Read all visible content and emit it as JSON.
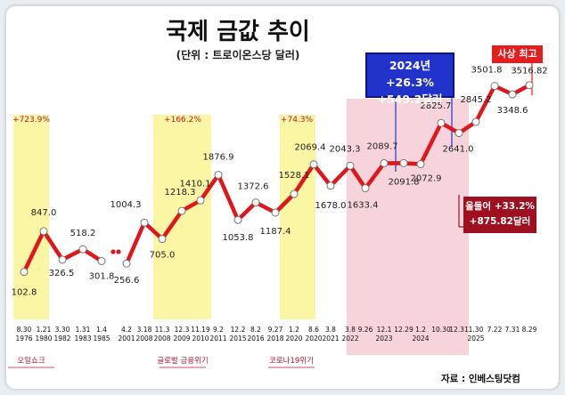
{
  "title": "국제 금값 추이",
  "subtitle": "(단위 : 트로이온스당 달러)",
  "source": "자료 : 인베스팅닷컴",
  "callouts": {
    "blue_line1": "2024년 +26.3%",
    "blue_line2": "+549.2달러",
    "record": "사상 최고",
    "ytd_line1": "올들어 +33.2%",
    "ytd_line2": "+875.82달러"
  },
  "colors": {
    "line": "#e0161a",
    "marker_fill": "#ffffff",
    "crisis_band": "#fbf6a4",
    "highlight_band": "#f7d4dc",
    "blue_box": "#2233cc",
    "record_box": "#e51d1d",
    "ytd_box": "#9e1020",
    "crisis_label": "#c0182a"
  },
  "chart_data": {
    "type": "line",
    "title": "국제 금값 추이",
    "ylabel": "",
    "unit": "(단위 : 트로이온스당 달러)",
    "y_axis_shown": false,
    "grid": false,
    "points": [
      {
        "date": [
          "8.30",
          "1976"
        ],
        "value": "102.8"
      },
      {
        "date": [
          "1.21",
          "1980"
        ],
        "value": "847.0"
      },
      {
        "date": [
          "3.30",
          "1982"
        ],
        "value": "326.5"
      },
      {
        "date": [
          "1.31",
          "1983"
        ],
        "value": "518.2"
      },
      {
        "date": [
          "1.4",
          "1985"
        ],
        "value": "301.8"
      },
      {
        "date": [
          "4.2",
          "2001"
        ],
        "value": "256.6"
      },
      {
        "date": [
          "3.18",
          "2008"
        ],
        "value": "1004.3"
      },
      {
        "date": [
          "11.3",
          "2008"
        ],
        "value": "705.0"
      },
      {
        "date": [
          "12.3",
          "2009"
        ],
        "value": "1218.3"
      },
      {
        "date": [
          "11.19",
          "2010"
        ],
        "value": "1410.1"
      },
      {
        "date": [
          "9.2",
          "2011"
        ],
        "value": "1876.9"
      },
      {
        "date": [
          "12.2",
          "2015"
        ],
        "value": "1053.8"
      },
      {
        "date": [
          "8.2",
          "2016"
        ],
        "value": "1372.6"
      },
      {
        "date": [
          "9.27",
          "2018"
        ],
        "value": "1187.4"
      },
      {
        "date": [
          "1.2",
          "2020"
        ],
        "value": "1528.1"
      },
      {
        "date": [
          "8.6",
          "2020"
        ],
        "value": "2069.4"
      },
      {
        "date": [
          "3.8",
          "2021"
        ],
        "value": "1678.0"
      },
      {
        "date": [
          "3.8",
          "2022"
        ],
        "value": "2043.3"
      },
      {
        "date": [
          "9.26",
          ""
        ],
        "value": "1633.4"
      },
      {
        "date": [
          "12.1",
          "2023"
        ],
        "value": "2089.7"
      },
      {
        "date": [
          "12.29",
          ""
        ],
        "value": "2091.8"
      },
      {
        "date": [
          "1.2",
          "2024"
        ],
        "value": "2072.9"
      },
      {
        "date": [
          "10.30",
          ""
        ],
        "value": "2825.7"
      },
      {
        "date": [
          "12.31",
          ""
        ],
        "value": "2641.0"
      },
      {
        "date": [
          "1.30",
          "2025"
        ],
        "value": "2845.2"
      },
      {
        "date": [
          "7.22",
          ""
        ],
        "value": "3501.8"
      },
      {
        "date": [
          "7.31",
          ""
        ],
        "value": "3348.6"
      },
      {
        "date": [
          "8.29",
          ""
        ],
        "value": "3516.82"
      }
    ],
    "annotations": [
      {
        "band": "crisis",
        "text": "+723.9%",
        "event": "오일쇼크"
      },
      {
        "band": "crisis",
        "text": "+166.2%",
        "event": "글로벌 금융위기"
      },
      {
        "band": "crisis",
        "text": "+74.3%",
        "event": "코로나19위기"
      }
    ]
  }
}
